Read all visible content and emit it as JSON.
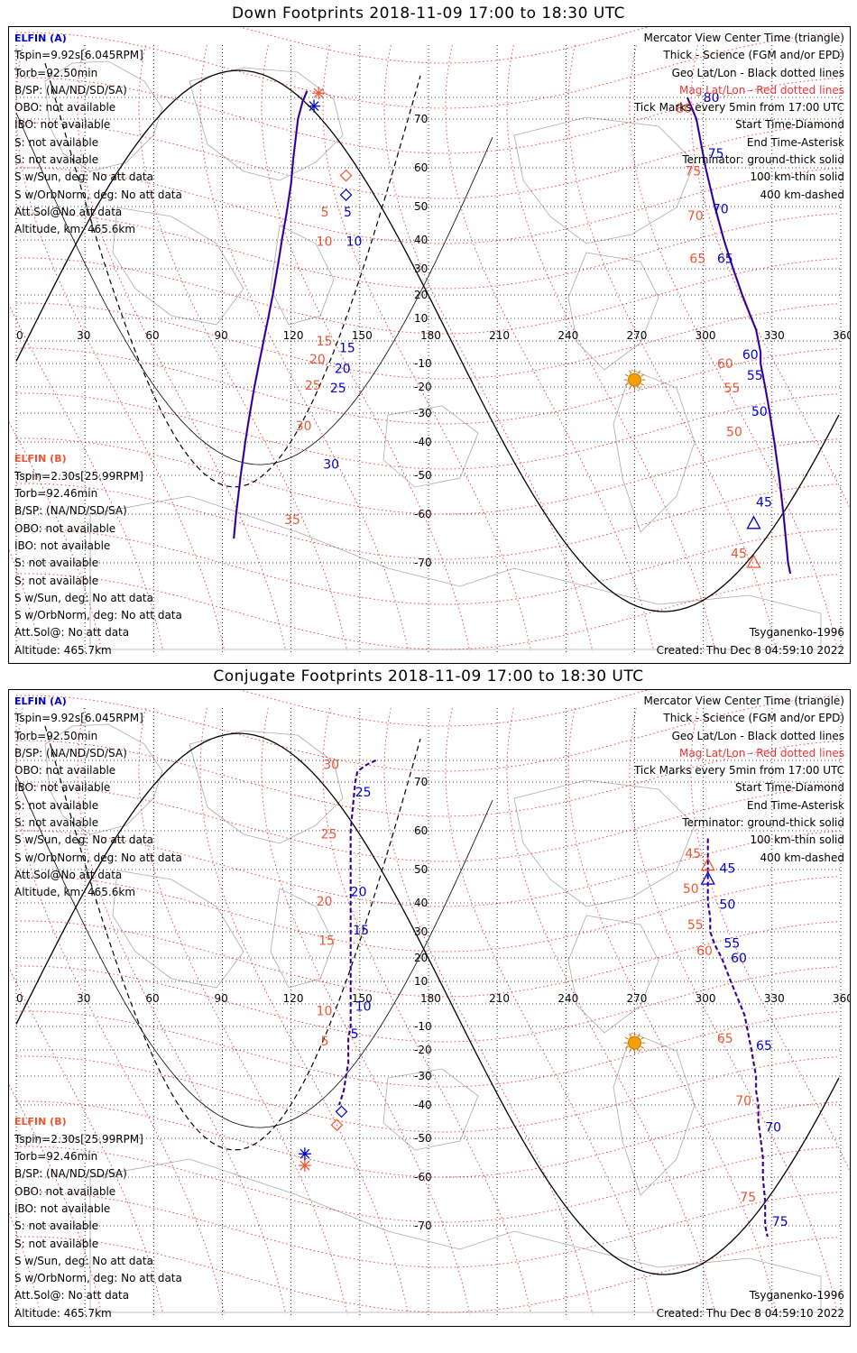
{
  "colors": {
    "sat_a": "#0000cc",
    "sat_b": "#ee5533",
    "mag_grid": "#e33",
    "geo_grid": "#000",
    "coast": "#aaaaaa",
    "sun": "#f5a000"
  },
  "legend": {
    "lines": [
      "Mercator View Center Time (triangle)",
      "Thick - Science (FGM and/or EPD)",
      "Geo Lat/Lon - Black dotted lines",
      "Mag Lat/Lon - Red dotted lines",
      "Tick Marks every 5min from 17:00 UTC",
      "Start Time-Diamond",
      "End Time-Asterisk",
      "Terminator: ground-thick solid",
      "100 km-thin solid",
      "400 km-dashed"
    ]
  },
  "sat_a": {
    "title": "ELFIN (A)",
    "lines": [
      "Tspin=9.92s[6.045RPM]",
      "Torb=92.50min",
      "B/SP: (NA/ND/SD/SA)",
      "OBO: not available",
      "IBO: not available",
      "S: not available",
      "S: not available",
      "S w/Sun, deg: No att data",
      "S w/OrbNorm, deg: No att data",
      "Att.Sol@No att data",
      "Altitude, km: 465.6km"
    ]
  },
  "sat_b": {
    "title": "ELFIN (B)",
    "lines": [
      "Tspin=2.30s[25.99RPM]",
      "Torb=92.46min",
      "B/SP: (NA/ND/SD/SA)",
      "OBO: not available",
      "IBO: not available",
      "S: not available",
      "S: not available",
      "S w/Sun, deg: No att data",
      "S w/OrbNorm, deg: No att data",
      "Att.Sol@: No att data",
      "Altitude: 465.7km"
    ]
  },
  "model": "Tsyganenko-1996",
  "created": "Created: Thu Dec  8 04:59:10 2022",
  "lon_ticks": [
    0,
    30,
    60,
    90,
    120,
    150,
    180,
    210,
    240,
    270,
    300,
    330,
    360
  ],
  "lat_ticks": [
    70,
    60,
    50,
    40,
    30,
    20,
    10,
    -10,
    -20,
    -30,
    -40,
    -50,
    -60,
    -70
  ],
  "panels": [
    {
      "title": "Down Footprints 2018-11-09 17:00 to 18:30 UTC",
      "style": "solid",
      "track_left": [
        [
          127,
          83
        ],
        [
          125,
          78
        ],
        [
          123,
          70
        ],
        [
          121,
          62
        ],
        [
          120,
          56
        ],
        [
          119,
          52
        ],
        [
          118,
          48
        ],
        [
          117,
          44
        ],
        [
          116,
          40
        ],
        [
          115,
          35
        ],
        [
          114,
          30
        ],
        [
          113,
          25
        ],
        [
          112,
          20
        ],
        [
          111,
          15
        ],
        [
          110,
          10
        ],
        [
          109,
          5
        ],
        [
          108,
          0
        ],
        [
          107,
          -5
        ],
        [
          106,
          -10
        ],
        [
          105,
          -15
        ],
        [
          104,
          -20
        ],
        [
          103,
          -25
        ],
        [
          102,
          -30
        ],
        [
          101,
          -35
        ],
        [
          100,
          -40
        ],
        [
          99,
          -45
        ],
        [
          98,
          -50
        ],
        [
          97,
          -55
        ],
        [
          96,
          -60
        ],
        [
          95,
          -65
        ]
      ],
      "track_right": [
        [
          293,
          80
        ],
        [
          295,
          75
        ],
        [
          297,
          70
        ],
        [
          299,
          65
        ],
        [
          301,
          60
        ],
        [
          303,
          55
        ],
        [
          305,
          50
        ],
        [
          307,
          45
        ],
        [
          309,
          40
        ],
        [
          311,
          35
        ],
        [
          313,
          30
        ],
        [
          315,
          25
        ],
        [
          317,
          20
        ],
        [
          319,
          15
        ],
        [
          321,
          10
        ],
        [
          323,
          5
        ],
        [
          324,
          0
        ],
        [
          325,
          -5
        ],
        [
          325,
          -10
        ],
        [
          326,
          -15
        ],
        [
          327,
          -20
        ],
        [
          328,
          -25
        ],
        [
          329,
          -30
        ],
        [
          330,
          -35
        ],
        [
          331,
          -40
        ],
        [
          332,
          -45
        ],
        [
          333,
          -50
        ],
        [
          334,
          -55
        ],
        [
          335,
          -60
        ],
        [
          336,
          -65
        ],
        [
          337,
          -70
        ],
        [
          338,
          -75
        ]
      ],
      "labels_a": [
        {
          "t": "5",
          "lon": 143,
          "lat": 47
        },
        {
          "t": "10",
          "lon": 144,
          "lat": 38
        },
        {
          "t": "15",
          "lon": 141,
          "lat": -5
        },
        {
          "t": "20",
          "lon": 139,
          "lat": -14
        },
        {
          "t": "25",
          "lon": 137,
          "lat": -22
        },
        {
          "t": "30",
          "lon": 134,
          "lat": -48
        },
        {
          "t": "80",
          "lon": 300,
          "lat": 78
        },
        {
          "t": "75",
          "lon": 302,
          "lat": 62
        },
        {
          "t": "70",
          "lon": 304,
          "lat": 48
        },
        {
          "t": "65",
          "lon": 306,
          "lat": 32
        },
        {
          "t": "60",
          "lon": 317,
          "lat": -8
        },
        {
          "t": "55",
          "lon": 319,
          "lat": -17
        },
        {
          "t": "50",
          "lon": 321,
          "lat": -31
        },
        {
          "t": "45",
          "lon": 323,
          "lat": -58
        }
      ],
      "labels_b": [
        {
          "t": "5",
          "lon": 133,
          "lat": 47
        },
        {
          "t": "10",
          "lon": 131,
          "lat": 38
        },
        {
          "t": "15",
          "lon": 131,
          "lat": -2
        },
        {
          "t": "20",
          "lon": 128,
          "lat": -10
        },
        {
          "t": "25",
          "lon": 126,
          "lat": -21
        },
        {
          "t": "30",
          "lon": 122,
          "lat": -36
        },
        {
          "t": "35",
          "lon": 117,
          "lat": -62
        },
        {
          "t": "80",
          "lon": 288,
          "lat": 73
        },
        {
          "t": "75",
          "lon": 292,
          "lat": 58
        },
        {
          "t": "70",
          "lon": 293,
          "lat": 46
        },
        {
          "t": "65",
          "lon": 294,
          "lat": 32
        },
        {
          "t": "60",
          "lon": 306,
          "lat": -12
        },
        {
          "t": "55",
          "lon": 309,
          "lat": -22
        },
        {
          "t": "50",
          "lon": 310,
          "lat": -38
        },
        {
          "t": "45",
          "lon": 312,
          "lat": -69
        }
      ],
      "start_a": {
        "lon": 144,
        "lat": 53
      },
      "start_b": {
        "lon": 144,
        "lat": 58
      },
      "end_a": {
        "lon": 130,
        "lat": 76
      },
      "end_b": {
        "lon": 132,
        "lat": 82
      },
      "mid_a": {
        "lon": 322,
        "lat": -62
      },
      "mid_b": {
        "lon": 322,
        "lat": -70
      }
    },
    {
      "title": "Conjugate Footprints 2018-11-09 17:00 to 18:30 UTC",
      "style": "dashed",
      "track_left": [
        [
          157,
          80
        ],
        [
          153,
          78
        ],
        [
          149,
          75
        ],
        [
          148,
          70
        ],
        [
          147,
          65
        ],
        [
          146,
          60
        ],
        [
          146,
          55
        ],
        [
          146,
          50
        ],
        [
          146,
          45
        ],
        [
          146,
          40
        ],
        [
          146,
          35
        ],
        [
          146,
          30
        ],
        [
          146,
          25
        ],
        [
          146,
          20
        ],
        [
          146,
          15
        ],
        [
          146,
          10
        ],
        [
          146,
          5
        ],
        [
          146,
          0
        ],
        [
          146,
          -5
        ],
        [
          146,
          -10
        ],
        [
          145,
          -15
        ],
        [
          145,
          -20
        ],
        [
          145,
          -25
        ],
        [
          144,
          -30
        ],
        [
          143,
          -35
        ],
        [
          141,
          -40
        ]
      ],
      "track_right": [
        [
          302,
          58
        ],
        [
          302,
          55
        ],
        [
          302,
          50
        ],
        [
          302,
          45
        ],
        [
          302,
          40
        ],
        [
          303,
          35
        ],
        [
          303,
          30
        ],
        [
          305,
          25
        ],
        [
          308,
          20
        ],
        [
          310,
          15
        ],
        [
          312,
          10
        ],
        [
          314,
          5
        ],
        [
          316,
          0
        ],
        [
          318,
          -5
        ],
        [
          319,
          -10
        ],
        [
          320,
          -15
        ],
        [
          321,
          -20
        ],
        [
          322,
          -25
        ],
        [
          323,
          -30
        ],
        [
          323,
          -35
        ],
        [
          324,
          -40
        ],
        [
          324,
          -45
        ],
        [
          325,
          -50
        ],
        [
          326,
          -55
        ],
        [
          326,
          -60
        ],
        [
          327,
          -65
        ],
        [
          327,
          -70
        ],
        [
          328,
          -75
        ]
      ],
      "labels_a": [
        {
          "t": "25",
          "lon": 148,
          "lat": 67
        },
        {
          "t": "20",
          "lon": 146,
          "lat": 42
        },
        {
          "t": "15",
          "lon": 147,
          "lat": 29
        },
        {
          "t": "10",
          "lon": 148,
          "lat": -3
        },
        {
          "t": "5",
          "lon": 146,
          "lat": -15
        },
        {
          "t": "45",
          "lon": 307,
          "lat": 49
        },
        {
          "t": "50",
          "lon": 307,
          "lat": 38
        },
        {
          "t": "55",
          "lon": 309,
          "lat": 24
        },
        {
          "t": "60",
          "lon": 312,
          "lat": 18
        },
        {
          "t": "65",
          "lon": 323,
          "lat": -20
        },
        {
          "t": "70",
          "lon": 327,
          "lat": -48
        },
        {
          "t": "75",
          "lon": 330,
          "lat": -70
        }
      ],
      "labels_b": [
        {
          "t": "30",
          "lon": 134,
          "lat": 76
        },
        {
          "t": "25",
          "lon": 133,
          "lat": 58
        },
        {
          "t": "20",
          "lon": 131,
          "lat": 39
        },
        {
          "t": "15",
          "lon": 132,
          "lat": 25
        },
        {
          "t": "10",
          "lon": 131,
          "lat": -5
        },
        {
          "t": "5",
          "lon": 133,
          "lat": -18
        },
        {
          "t": "45",
          "lon": 292,
          "lat": 53
        },
        {
          "t": "50",
          "lon": 291,
          "lat": 43
        },
        {
          "t": "55",
          "lon": 293,
          "lat": 31
        },
        {
          "t": "60",
          "lon": 297,
          "lat": 21
        },
        {
          "t": "65",
          "lon": 306,
          "lat": -17
        },
        {
          "t": "70",
          "lon": 314,
          "lat": -40
        },
        {
          "t": "75",
          "lon": 316,
          "lat": -65
        }
      ],
      "start_a": {
        "lon": 142,
        "lat": -42
      },
      "start_b": {
        "lon": 140,
        "lat": -46
      },
      "end_a": {
        "lon": 126,
        "lat": -54
      },
      "end_b": {
        "lon": 126,
        "lat": -57
      },
      "mid_a": {
        "lon": 302,
        "lat": 47
      },
      "mid_b": {
        "lon": 302,
        "lat": 51
      }
    }
  ]
}
